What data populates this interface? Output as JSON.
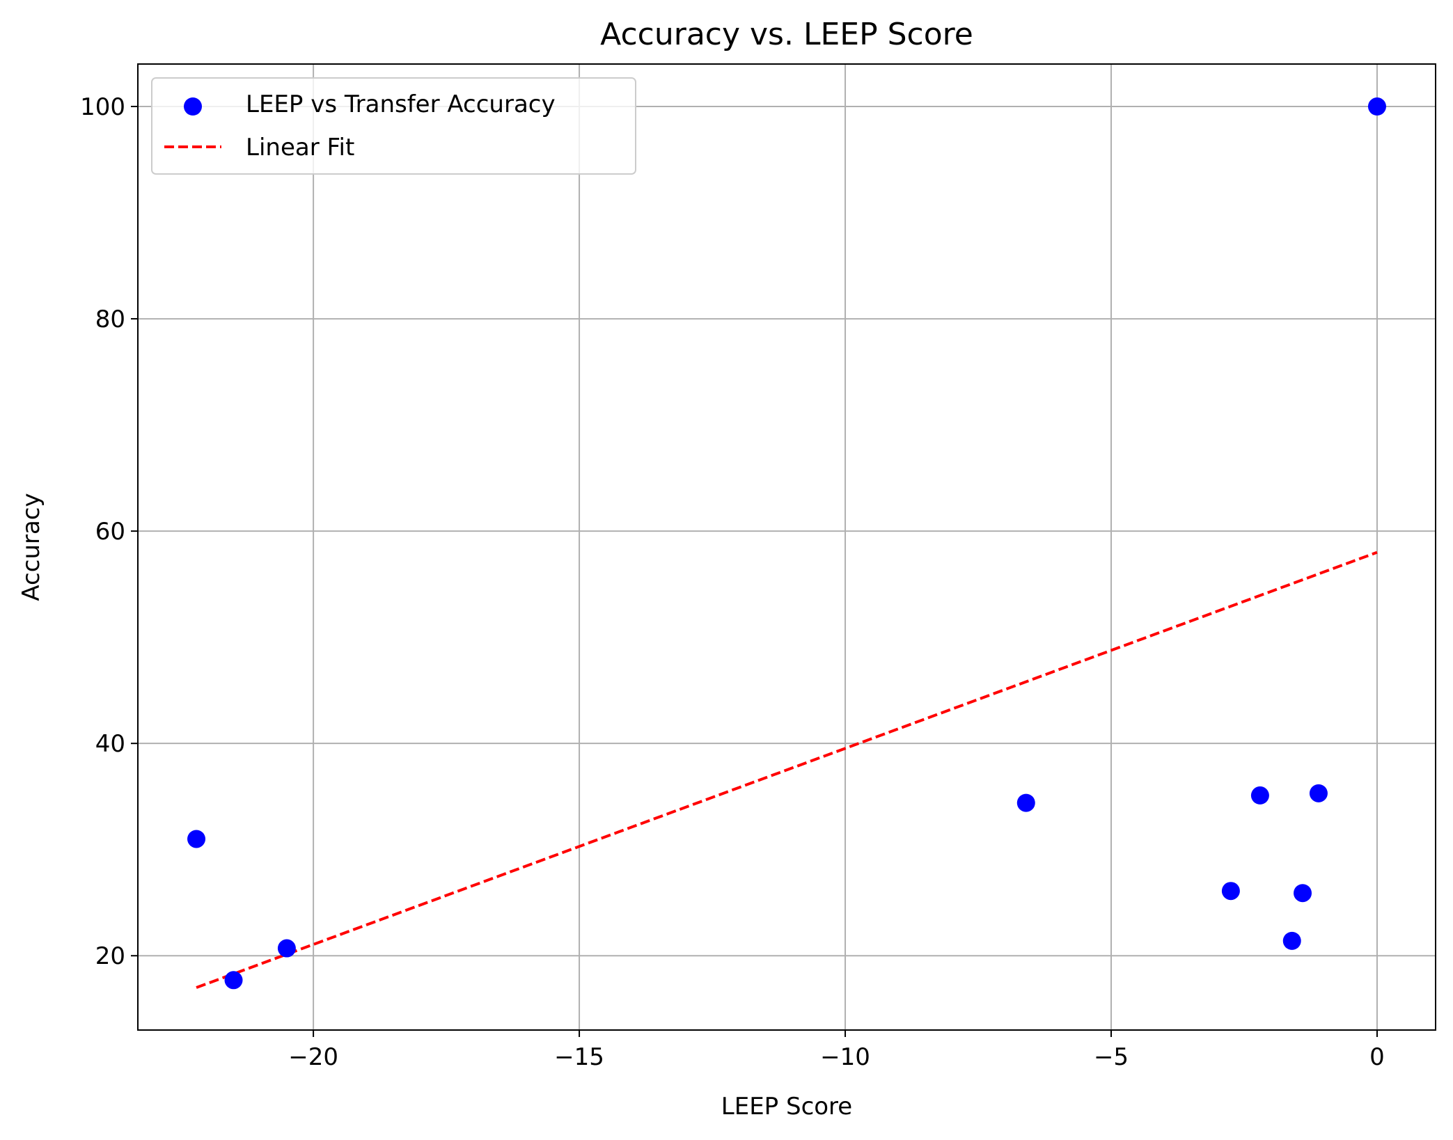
{
  "chart_data": {
    "type": "scatter",
    "title": "Accuracy vs. LEEP Score",
    "xlabel": "LEEP Score",
    "ylabel": "Accuracy",
    "xlim": [
      -23.3,
      1.1
    ],
    "ylim": [
      13.0,
      104.0
    ],
    "xticks": [
      -20,
      -15,
      -10,
      -5,
      0
    ],
    "xtick_labels": [
      "−20",
      "−15",
      "−10",
      "−5",
      "0"
    ],
    "yticks": [
      20,
      40,
      60,
      80,
      100
    ],
    "ytick_labels": [
      "20",
      "40",
      "60",
      "80",
      "100"
    ],
    "grid": true,
    "legend_position": "top-left",
    "series": [
      {
        "name": "LEEP vs Transfer Accuracy",
        "kind": "scatter",
        "color": "#0000ff",
        "points": [
          {
            "x": -22.2,
            "y": 31.0
          },
          {
            "x": -21.5,
            "y": 17.7
          },
          {
            "x": -20.5,
            "y": 20.7
          },
          {
            "x": -6.6,
            "y": 34.4
          },
          {
            "x": -2.75,
            "y": 26.1
          },
          {
            "x": -2.2,
            "y": 35.1
          },
          {
            "x": -1.6,
            "y": 21.4
          },
          {
            "x": -1.4,
            "y": 25.9
          },
          {
            "x": -1.1,
            "y": 35.3
          },
          {
            "x": 0.0,
            "y": 100.0
          }
        ]
      },
      {
        "name": "Linear Fit",
        "kind": "line",
        "color": "#ff0000",
        "dashed": true,
        "points": [
          {
            "x": -22.2,
            "y": 17.0
          },
          {
            "x": 0.0,
            "y": 58.0
          }
        ]
      }
    ]
  }
}
